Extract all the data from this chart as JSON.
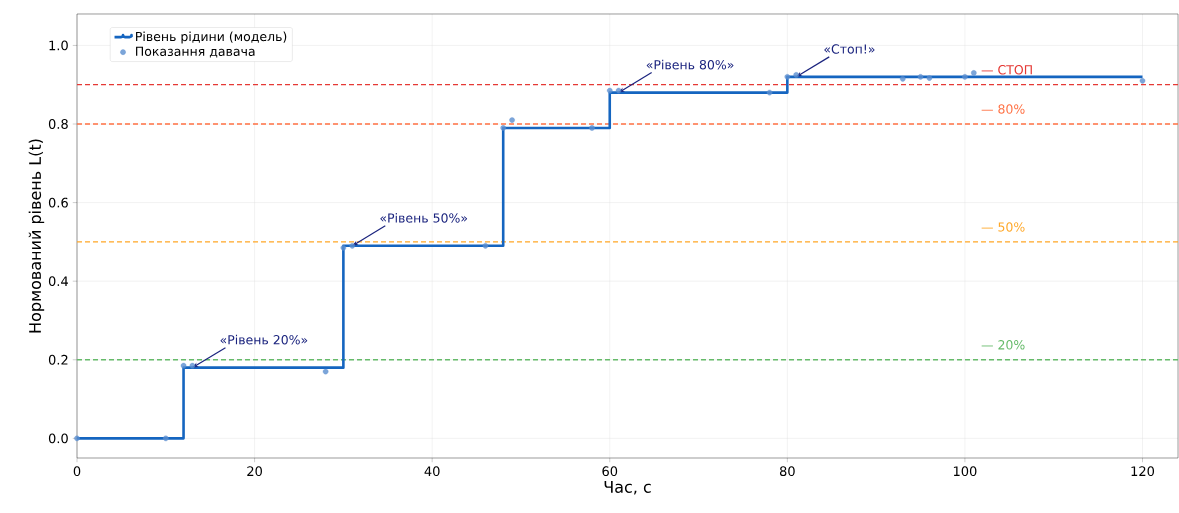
{
  "chart_data": {
    "type": "line",
    "xlabel": "Час, с",
    "ylabel": "Нормований рівень L(t)",
    "series": [
      {
        "name": "Рівень рідини (модель)",
        "type": "step",
        "color": "#1565c0",
        "marker": "none",
        "x": [
          0,
          12,
          30,
          48,
          60,
          80,
          120
        ],
        "values": [
          0,
          0.18,
          0.49,
          0.79,
          0.88,
          0.92,
          0.92
        ]
      },
      {
        "name": "Показання давача",
        "type": "scatter",
        "color": "#5b8fd0",
        "marker": "circle",
        "x": [
          0,
          10,
          12,
          13,
          28,
          30,
          31,
          46,
          48,
          49,
          58,
          60,
          61,
          78,
          80,
          81,
          93,
          95,
          96,
          100,
          101,
          120
        ],
        "values": [
          0,
          0,
          0.185,
          0.185,
          0.17,
          0.485,
          0.49,
          0.49,
          0.79,
          0.81,
          0.79,
          0.885,
          0.885,
          0.88,
          0.92,
          0.925,
          0.915,
          0.92,
          0.917,
          0.92,
          0.93,
          0.91
        ]
      }
    ],
    "xlim": [
      0,
      124
    ],
    "ylim": [
      -0.05,
      1.08
    ],
    "xticks": [
      0,
      20,
      40,
      60,
      80,
      100,
      120
    ],
    "yticks": [
      {
        "value": 0,
        "label": "0.0"
      },
      {
        "value": 0.2,
        "label": "0.2"
      },
      {
        "value": 0.4,
        "label": "0.4"
      },
      {
        "value": 0.6,
        "label": "0.6"
      },
      {
        "value": 0.8,
        "label": "0.8"
      },
      {
        "value": 1.0,
        "label": "1.0"
      }
    ],
    "ref_lines": [
      {
        "axis": "y",
        "value": 0.2,
        "label": "— 20%",
        "color": "#66bb6a",
        "line_style": "dashed"
      },
      {
        "axis": "y",
        "value": 0.5,
        "label": "— 50%",
        "color": "#ffa726",
        "line_style": "dashed"
      },
      {
        "axis": "y",
        "value": 0.8,
        "label": "— 80%",
        "color": "#ff7043",
        "line_style": "dashed"
      },
      {
        "axis": "y",
        "value": 0.9,
        "label": "— СТОП",
        "color": "#e53935",
        "line_style": "dashed"
      }
    ],
    "annotations": [
      {
        "text": "«Рівень 20%»",
        "x": 13,
        "y": 0.18
      },
      {
        "text": "«Рівень 50%»",
        "x": 31,
        "y": 0.49
      },
      {
        "text": "«Рівень 80%»",
        "x": 61,
        "y": 0.88
      },
      {
        "text": "«Стоп!»",
        "x": 81,
        "y": 0.92
      }
    ],
    "grid": true,
    "legend": "top left"
  }
}
